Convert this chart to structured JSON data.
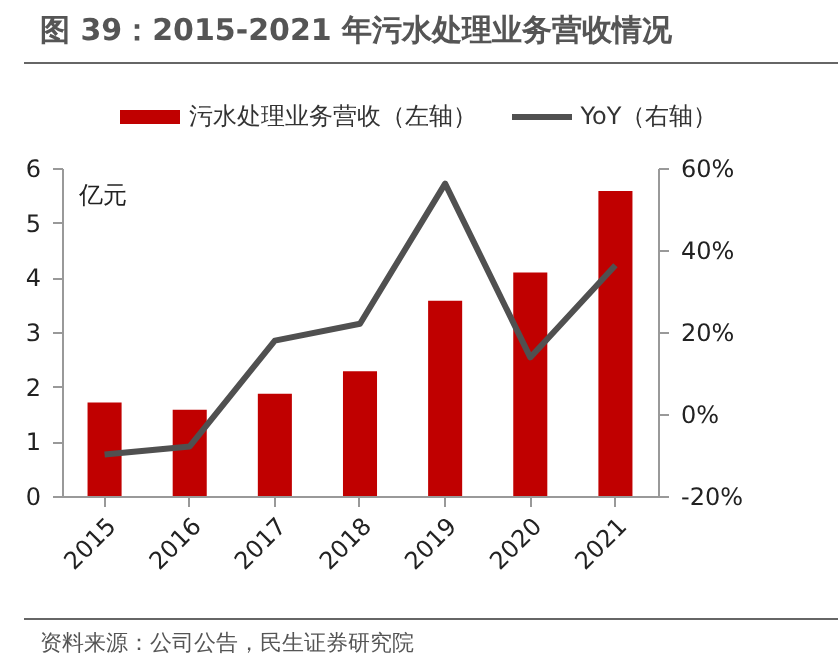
{
  "chart_data": {
    "type": "bar",
    "title": "图 39：2015-2021 年污水处理业务营收情况",
    "ylabel": "亿元",
    "categories": [
      "2015",
      "2016",
      "2017",
      "2018",
      "2019",
      "2020",
      "2021"
    ],
    "series": [
      {
        "name": "污水处理业务营收（左轴）",
        "color": "#c00000",
        "values": [
          1.71,
          1.58,
          1.87,
          2.28,
          3.57,
          4.09,
          5.58
        ]
      },
      {
        "name": "YoY（右轴）",
        "type": "line",
        "axis": "y2",
        "color": "#505050",
        "values": [
          -9.9,
          -7.9,
          17.9,
          22.0,
          56.2,
          13.8,
          36.3
        ]
      }
    ],
    "ylim": [
      0,
      6
    ],
    "yticks": [
      0,
      1,
      2,
      3,
      4,
      5,
      6
    ],
    "y2lim": [
      -20,
      60
    ],
    "y2ticks": [
      {
        "value": -20,
        "label": "-20%"
      },
      {
        "value": 0,
        "label": "0%"
      },
      {
        "value": 20,
        "label": "20%"
      },
      {
        "value": 40,
        "label": "40%"
      },
      {
        "value": 60,
        "label": "60%"
      }
    ],
    "legend": "top",
    "grid": false,
    "annotations": [
      "资料来源：公司公告，民生证券研究院"
    ]
  }
}
